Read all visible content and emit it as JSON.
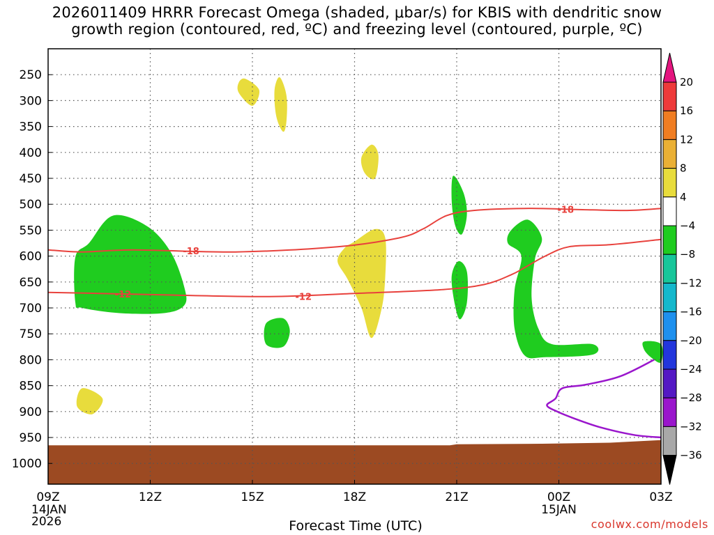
{
  "chart_data": {
    "type": "heatmap",
    "title_line1": "2026011409 HRRR Forecast Omega (shaded, μbar/s) for KBIS with dendritic snow",
    "title_line2": "growth region (contoured, red, ºC) and freezing level (contoured, purple, ºC)",
    "xlabel": "Forecast Time (UTC)",
    "credit": "coolwx.com/models",
    "x_ticks": [
      {
        "hour": 0,
        "label": "09Z",
        "sub1": "14JAN",
        "sub2": "2026"
      },
      {
        "hour": 3,
        "label": "12Z",
        "sub1": "",
        "sub2": ""
      },
      {
        "hour": 6,
        "label": "15Z",
        "sub1": "",
        "sub2": ""
      },
      {
        "hour": 9,
        "label": "18Z",
        "sub1": "",
        "sub2": ""
      },
      {
        "hour": 12,
        "label": "21Z",
        "sub1": "",
        "sub2": ""
      },
      {
        "hour": 15,
        "label": "00Z",
        "sub1": "15JAN",
        "sub2": ""
      },
      {
        "hour": 18,
        "label": "03Z",
        "sub1": "",
        "sub2": ""
      }
    ],
    "x_range_hours": [
      0,
      18
    ],
    "y_ticks": [
      "250",
      "300",
      "350",
      "400",
      "450",
      "500",
      "550",
      "600",
      "650",
      "700",
      "750",
      "800",
      "850",
      "900",
      "950",
      "1000"
    ],
    "y_tick_values": [
      250,
      300,
      350,
      400,
      450,
      500,
      550,
      600,
      650,
      700,
      750,
      800,
      850,
      900,
      950,
      1000
    ],
    "y_range_hpa": [
      200,
      1040
    ],
    "colorbar": {
      "labels": [
        "20",
        "16",
        "12",
        "8",
        "4",
        "−4",
        "−8",
        "−12",
        "−16",
        "−20",
        "−24",
        "−28",
        "−32",
        "−36"
      ],
      "values": [
        20,
        16,
        12,
        8,
        4,
        -4,
        -8,
        -12,
        -16,
        -20,
        -24,
        -28,
        -32,
        -36
      ],
      "colors": [
        "#e4157f",
        "#ee3a3a",
        "#f07d22",
        "#eab035",
        "#e8dc3c",
        "#ffffff",
        "#1fcc1f",
        "#18c69a",
        "#15b8cc",
        "#1e90ee",
        "#2336dc",
        "#5418c4",
        "#9a16cc",
        "#a8a8a8",
        "#000000"
      ]
    },
    "omega_regions": [
      {
        "sign": "positive",
        "level": 4,
        "color": "#e8dc3c",
        "points": [
          [
            5.8,
            258
          ],
          [
            6.2,
            280
          ],
          [
            6.0,
            310
          ],
          [
            5.6,
            285
          ],
          [
            5.6,
            265
          ]
        ]
      },
      {
        "sign": "positive",
        "level": 4,
        "color": "#e8dc3c",
        "points": [
          [
            6.8,
            255
          ],
          [
            7.0,
            290
          ],
          [
            7.0,
            340
          ],
          [
            6.9,
            360
          ],
          [
            6.7,
            330
          ],
          [
            6.65,
            280
          ]
        ]
      },
      {
        "sign": "positive",
        "level": 4,
        "color": "#e8dc3c",
        "points": [
          [
            9.5,
            385
          ],
          [
            9.7,
            405
          ],
          [
            9.6,
            450
          ],
          [
            9.3,
            440
          ],
          [
            9.2,
            410
          ]
        ]
      },
      {
        "sign": "positive",
        "level": 4,
        "color": "#e8dc3c",
        "points": [
          [
            9.0,
            572
          ],
          [
            9.6,
            548
          ],
          [
            9.9,
            565
          ],
          [
            9.9,
            640
          ],
          [
            9.8,
            700
          ],
          [
            9.5,
            758
          ],
          [
            9.2,
            700
          ],
          [
            8.8,
            645
          ],
          [
            8.5,
            610
          ],
          [
            8.7,
            585
          ]
        ]
      },
      {
        "sign": "positive",
        "level": 4,
        "color": "#e8dc3c",
        "points": [
          [
            1.0,
            855
          ],
          [
            1.6,
            875
          ],
          [
            1.3,
            905
          ],
          [
            0.85,
            890
          ]
        ]
      },
      {
        "sign": "negative",
        "level": -4,
        "color": "#1fcc1f",
        "points": [
          [
            0.8,
            602
          ],
          [
            1.2,
            575
          ],
          [
            1.9,
            522
          ],
          [
            2.9,
            542
          ],
          [
            3.6,
            592
          ],
          [
            4.0,
            660
          ],
          [
            4.0,
            695
          ],
          [
            3.4,
            710
          ],
          [
            2.1,
            710
          ],
          [
            1.0,
            700
          ],
          [
            0.8,
            690
          ]
        ]
      },
      {
        "sign": "negative",
        "level": -4,
        "color": "#1fcc1f",
        "points": [
          [
            6.4,
            730
          ],
          [
            6.9,
            720
          ],
          [
            7.1,
            745
          ],
          [
            6.9,
            775
          ],
          [
            6.4,
            770
          ]
        ]
      },
      {
        "sign": "negative",
        "level": -4,
        "color": "#1fcc1f",
        "points": [
          [
            11.9,
            445
          ],
          [
            12.2,
            478
          ],
          [
            12.3,
            520
          ],
          [
            12.15,
            558
          ],
          [
            11.95,
            540
          ],
          [
            11.85,
            490
          ]
        ]
      },
      {
        "sign": "negative",
        "level": -4,
        "color": "#1fcc1f",
        "points": [
          [
            12.05,
            610
          ],
          [
            12.3,
            630
          ],
          [
            12.3,
            690
          ],
          [
            12.1,
            722
          ],
          [
            11.95,
            695
          ],
          [
            11.85,
            640
          ]
        ]
      },
      {
        "sign": "negative",
        "level": -4,
        "color": "#1fcc1f",
        "points": [
          [
            14.1,
            530
          ],
          [
            14.5,
            565
          ],
          [
            14.3,
            605
          ],
          [
            14.2,
            680
          ],
          [
            14.4,
            740
          ],
          [
            14.8,
            770
          ],
          [
            16.0,
            770
          ],
          [
            16.0,
            790
          ],
          [
            14.6,
            795
          ],
          [
            14.0,
            792
          ],
          [
            13.7,
            740
          ],
          [
            13.7,
            665
          ],
          [
            13.9,
            600
          ],
          [
            13.5,
            575
          ],
          [
            13.6,
            550
          ]
        ]
      },
      {
        "sign": "negative",
        "level": -4,
        "color": "#1fcc1f",
        "points": [
          [
            17.5,
            765
          ],
          [
            18.0,
            770
          ],
          [
            18.0,
            805
          ],
          [
            17.7,
            795
          ],
          [
            17.5,
            780
          ]
        ]
      }
    ],
    "dgz_contours": [
      {
        "value": -18,
        "label": "-18",
        "label_at": [
          [
            4.2,
            590
          ],
          [
            15.2,
            510
          ]
        ],
        "points": [
          [
            0,
            588
          ],
          [
            1.0,
            592
          ],
          [
            2.5,
            588
          ],
          [
            5.5,
            592
          ],
          [
            8.5,
            582
          ],
          [
            10.3,
            565
          ],
          [
            11.0,
            548
          ],
          [
            11.7,
            522
          ],
          [
            12.5,
            512
          ],
          [
            14.0,
            508
          ],
          [
            15.5,
            510
          ],
          [
            17.0,
            512
          ],
          [
            18.0,
            508
          ]
        ]
      },
      {
        "value": -12,
        "label": "-12",
        "label_at": [
          [
            2.2,
            673
          ],
          [
            7.5,
            678
          ]
        ],
        "points": [
          [
            0,
            670
          ],
          [
            1.5,
            672
          ],
          [
            3.5,
            675
          ],
          [
            6.5,
            678
          ],
          [
            9.0,
            672
          ],
          [
            11.5,
            665
          ],
          [
            12.8,
            655
          ],
          [
            13.6,
            636
          ],
          [
            14.0,
            622
          ],
          [
            14.6,
            600
          ],
          [
            15.3,
            582
          ],
          [
            16.5,
            578
          ],
          [
            18.0,
            568
          ]
        ]
      }
    ],
    "freezing_level": {
      "value": 0,
      "color": "#9a16cc",
      "points": [
        [
          17.8,
          800
        ],
        [
          16.8,
          832
        ],
        [
          15.8,
          848
        ],
        [
          15.1,
          855
        ],
        [
          14.9,
          875
        ],
        [
          14.65,
          888
        ],
        [
          14.95,
          900
        ],
        [
          15.4,
          912
        ],
        [
          16.2,
          930
        ],
        [
          17.2,
          945
        ],
        [
          18.0,
          950
        ]
      ]
    },
    "ground": {
      "color": "#9c4a22",
      "top_hpa": [
        [
          0,
          965
        ],
        [
          11.8,
          965
        ],
        [
          12.0,
          963
        ],
        [
          14.5,
          962
        ],
        [
          16.5,
          960
        ],
        [
          18.0,
          955
        ]
      ],
      "bottom_hpa": 1040
    }
  }
}
